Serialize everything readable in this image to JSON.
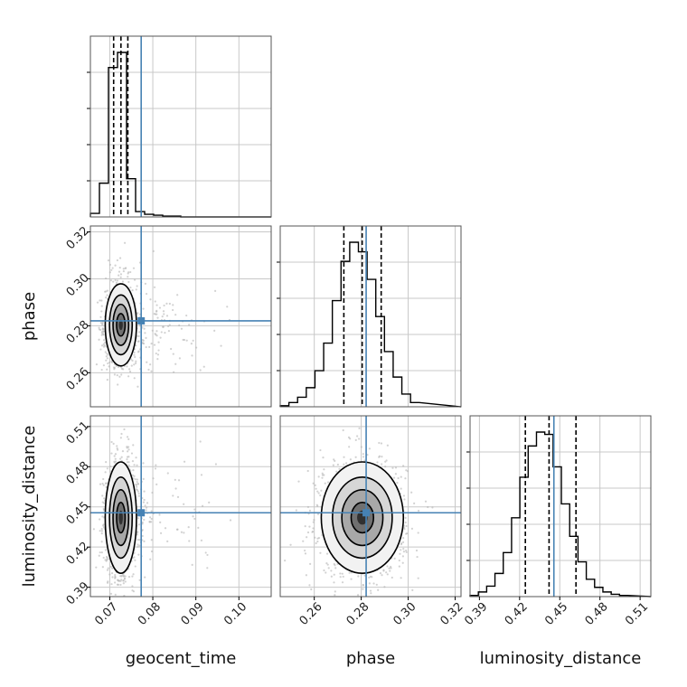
{
  "chart_data": {
    "type": "corner",
    "parameters": [
      "geocent_time",
      "phase",
      "luminosity_distance"
    ],
    "truths": {
      "geocent_time": 0.0773,
      "phase": 0.2821,
      "luminosity_distance": 0.4456
    },
    "quantiles": {
      "geocent_time": [
        0.0709,
        0.0726,
        0.0742
      ],
      "phase": [
        0.2726,
        0.2804,
        0.2885
      ],
      "luminosity_distance": [
        0.4243,
        0.442,
        0.4621
      ]
    },
    "ranges": {
      "geocent_time": [
        0.0655,
        0.1075
      ],
      "phase": [
        0.2455,
        0.3225
      ],
      "luminosity_distance": [
        0.383,
        0.518
      ]
    },
    "ticks": {
      "geocent_time": [
        "0.07",
        "0.08",
        "0.09",
        "0.10"
      ],
      "phase": [
        "0.26",
        "0.28",
        "0.30",
        "0.32"
      ],
      "luminosity_distance": [
        "0.39",
        "0.42",
        "0.45",
        "0.48",
        "0.51"
      ]
    },
    "marginals": {
      "geocent_time": {
        "bin_edges": [
          0.0655,
          0.0676,
          0.0697,
          0.0718,
          0.0739,
          0.076,
          0.0781,
          0.0802,
          0.0823,
          0.0844,
          0.0865,
          0.0886
        ],
        "counts": [
          4,
          38,
          168,
          185,
          43,
          6,
          3,
          2,
          1,
          1,
          0
        ]
      },
      "phase": {
        "bin_edges": [
          0.2455,
          0.2492,
          0.2529,
          0.2566,
          0.2603,
          0.264,
          0.2677,
          0.2714,
          0.2751,
          0.2788,
          0.2825,
          0.2862,
          0.2899,
          0.2936,
          0.2973,
          0.301,
          0.3047
        ],
        "counts": [
          1,
          4,
          9,
          18,
          34,
          60,
          100,
          137,
          155,
          146,
          120,
          85,
          52,
          28,
          12,
          4
        ]
      },
      "luminosity_distance": {
        "bin_edges": [
          0.383,
          0.3892,
          0.3954,
          0.4016,
          0.4078,
          0.414,
          0.4202,
          0.4264,
          0.4326,
          0.4388,
          0.445,
          0.4512,
          0.4574,
          0.4636,
          0.4698,
          0.476,
          0.4822,
          0.4884,
          0.4946,
          0.5008
        ],
        "counts": [
          1,
          4,
          9,
          20,
          38,
          68,
          103,
          130,
          142,
          140,
          112,
          80,
          52,
          30,
          15,
          8,
          4,
          2,
          1
        ]
      }
    },
    "grid": true,
    "colors": {
      "truth": "#4682b4",
      "hist": "#000000",
      "points": "#b4b4b4",
      "grid": "#c8c8c8"
    }
  }
}
